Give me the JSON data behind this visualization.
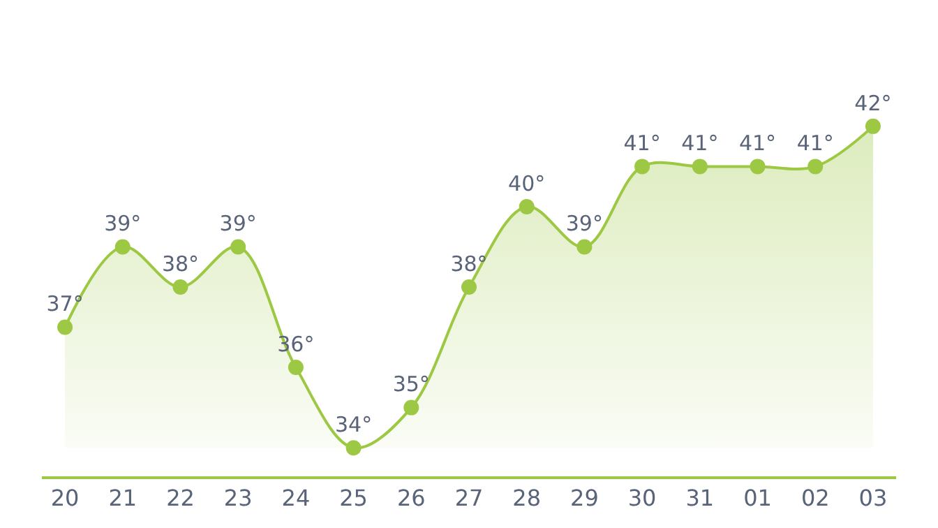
{
  "chart_data": {
    "type": "area",
    "categories": [
      "20",
      "21",
      "22",
      "23",
      "24",
      "25",
      "26",
      "27",
      "28",
      "29",
      "30",
      "31",
      "01",
      "02",
      "03"
    ],
    "series": [
      {
        "color": "#9cc843",
        "values": [
          37,
          39,
          38,
          39,
          36,
          34,
          35,
          38,
          40,
          39,
          41,
          41,
          41,
          41,
          42
        ],
        "value_labels": [
          "37°",
          "39°",
          "38°",
          "39°",
          "36°",
          "34°",
          "35°",
          "38°",
          "40°",
          "39°",
          "41°",
          "41°",
          "41°",
          "41°",
          "42°"
        ]
      }
    ],
    "marker": "circle"
  }
}
